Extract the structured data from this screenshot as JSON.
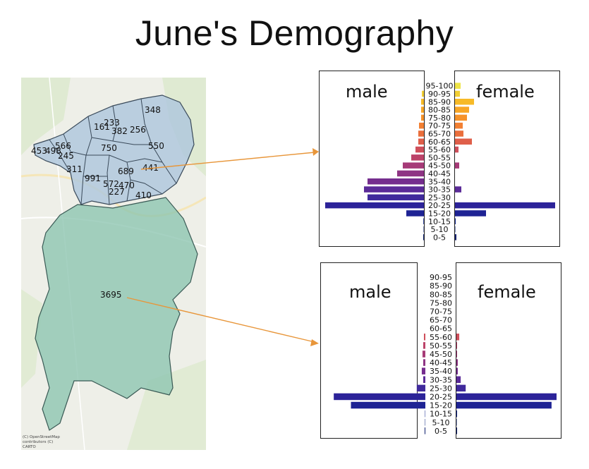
{
  "title": "June's Demography",
  "map": {
    "attribution": [
      "(C) OpenStreetMap",
      "contributors (C)",
      "CARTO"
    ],
    "district_labels": [
      "348",
      "233",
      "161",
      "382",
      "256",
      "453",
      "566",
      "498",
      "245",
      "750",
      "550",
      "311",
      "689",
      "441",
      "991",
      "572",
      "470",
      "227",
      "410",
      "3695"
    ]
  },
  "pyramids": [
    {
      "male_label": "male",
      "female_label": "female",
      "age_groups": [
        "0-5",
        "5-10",
        "10-15",
        "15-20",
        "20-25",
        "25-30",
        "30-35",
        "35-40",
        "40-45",
        "45-50",
        "50-55",
        "55-60",
        "60-65",
        "65-70",
        "70-75",
        "75-80",
        "80-85",
        "85-90",
        "90-95",
        "95-100"
      ],
      "male": [
        1,
        0.5,
        0.8,
        25,
        140,
        80,
        85,
        80,
        38,
        30,
        18,
        12,
        8,
        8,
        7,
        4,
        4,
        4,
        3,
        0
      ],
      "female": [
        2,
        0.5,
        1,
        44,
        142,
        0,
        9,
        0,
        0,
        6,
        0,
        5,
        24,
        12,
        11,
        17,
        20,
        27,
        7,
        8
      ],
      "colors": [
        "#0d1f6e",
        "#102b82",
        "#152a8f",
        "#1e2394",
        "#2c2399",
        "#402a9c",
        "#5b2b98",
        "#752d8e",
        "#8e3484",
        "#a63a77",
        "#bc4369",
        "#cf4f5b",
        "#df5f4a",
        "#ea6f3c",
        "#f28033",
        "#f6922a",
        "#f8a626",
        "#f7ba27",
        "#f2cf35",
        "#eee448"
      ]
    },
    {
      "male_label": "male",
      "female_label": "female",
      "age_groups": [
        "0-5",
        "5-10",
        "10-15",
        "15-20",
        "20-25",
        "25-30",
        "30-35",
        "35-40",
        "40-45",
        "45-50",
        "50-55",
        "55-60",
        "60-65",
        "65-70",
        "70-75",
        "75-80",
        "80-85",
        "85-90",
        "90-95"
      ],
      "male": [
        1,
        0.5,
        0.5,
        104,
        128,
        12,
        3,
        5,
        3,
        4,
        3,
        2,
        0,
        0,
        0,
        0,
        0,
        0,
        0
      ],
      "female": [
        1,
        0.5,
        1,
        133,
        140,
        13,
        6,
        2,
        2,
        1,
        1,
        4,
        0,
        0,
        0,
        0,
        0,
        0,
        0
      ],
      "colors": [
        "#0d1f6e",
        "#102b82",
        "#152a8f",
        "#1e2394",
        "#2c2399",
        "#402a9c",
        "#5b2b98",
        "#752d8e",
        "#8e3484",
        "#a63a77",
        "#bc4369",
        "#cf4f5b",
        "#df5f4a",
        "#ea6f3c",
        "#f28033",
        "#f6922a",
        "#f8a626",
        "#f7ba27",
        "#f2cf35"
      ]
    }
  ],
  "connector_color": "#e8963a"
}
